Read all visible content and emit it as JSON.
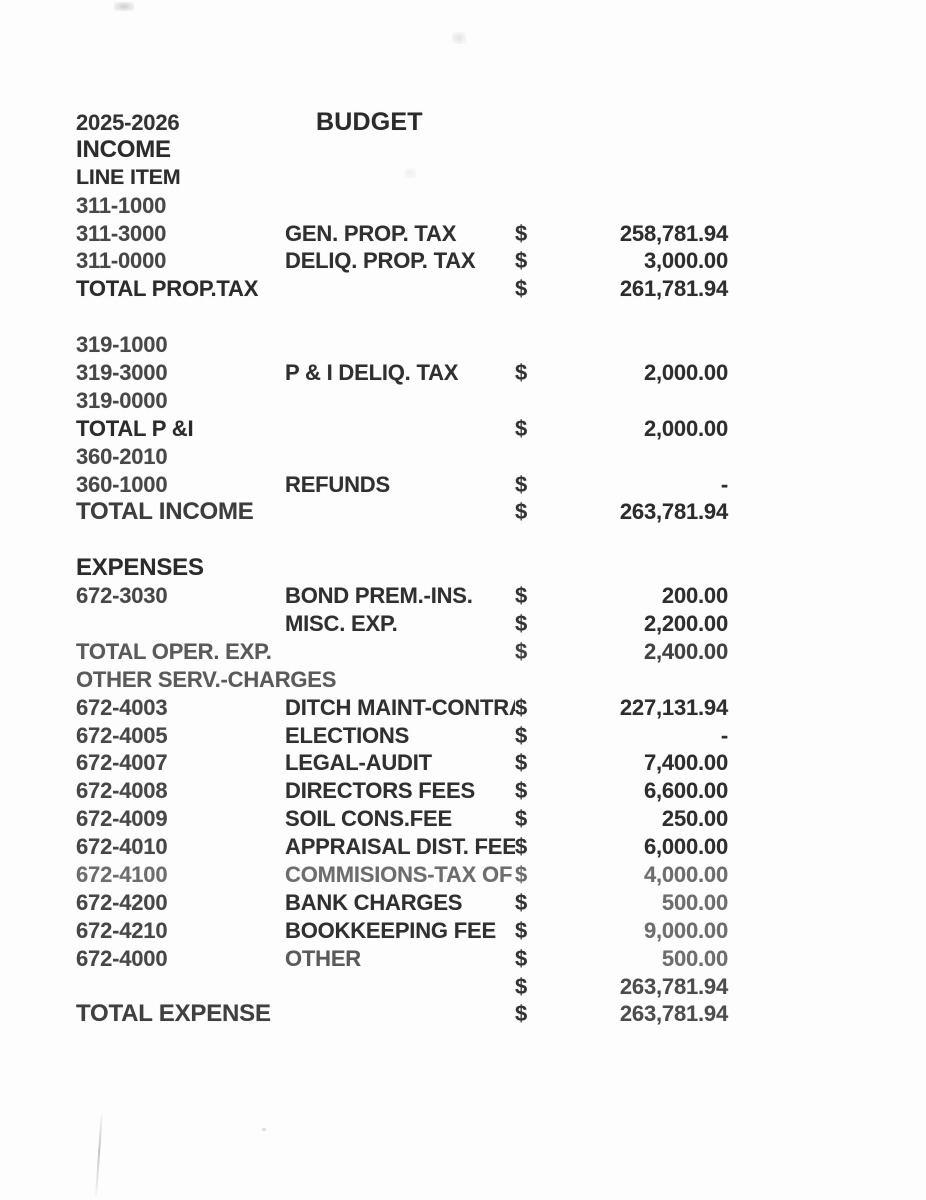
{
  "header": {
    "year": "2025-2026",
    "title": "BUDGET"
  },
  "colors": {
    "paper": "#fdfdfd",
    "ink": "#2f2f2f",
    "ink_light": "#6d6d6d"
  },
  "rows": [
    {
      "c1": "INCOME",
      "c2": "",
      "c3": "",
      "c4": "",
      "style": "section"
    },
    {
      "c1": "LINE ITEM",
      "c2": "",
      "c3": "",
      "c4": "",
      "style": "subheader"
    },
    {
      "c1": "311-1000",
      "c2": "",
      "c3": "",
      "c4": "",
      "style": "code"
    },
    {
      "c1": "311-3000",
      "c2": "GEN. PROP. TAX",
      "c3": "$",
      "c4": "258,781.94",
      "style": "item"
    },
    {
      "c1": "311-0000",
      "c2": "DELIQ. PROP. TAX",
      "c3": "$",
      "c4": "3,000.00",
      "style": "item"
    },
    {
      "c1": "TOTAL PROP.TAX",
      "c2": "",
      "c3": "$",
      "c4": "261,781.94",
      "style": "total"
    },
    {
      "c1": "",
      "c2": "",
      "c3": "",
      "c4": "",
      "style": "spacer"
    },
    {
      "c1": "319-1000",
      "c2": "",
      "c3": "",
      "c4": "",
      "style": "code"
    },
    {
      "c1": "319-3000",
      "c2": "P & I DELIQ. TAX",
      "c3": "$",
      "c4": "2,000.00",
      "style": "item"
    },
    {
      "c1": "319-0000",
      "c2": "",
      "c3": "",
      "c4": "",
      "style": "code"
    },
    {
      "c1": "TOTAL P &I",
      "c2": "",
      "c3": "$",
      "c4": "2,000.00",
      "style": "total"
    },
    {
      "c1": "360-2010",
      "c2": "",
      "c3": "",
      "c4": "",
      "style": "code"
    },
    {
      "c1": "360-1000",
      "c2": "REFUNDS",
      "c3": "$",
      "c4": "-",
      "style": "item"
    },
    {
      "c1": "TOTAL INCOME",
      "c2": "",
      "c3": "$",
      "c4": "263,781.94",
      "style": "total-big"
    },
    {
      "c1": "",
      "c2": "",
      "c3": "",
      "c4": "",
      "style": "spacer"
    },
    {
      "c1": "EXPENSES",
      "c2": "",
      "c3": "",
      "c4": "",
      "style": "section"
    },
    {
      "c1": "672-3030",
      "c2": "BOND PREM.-INS.",
      "c3": "$",
      "c4": "200.00",
      "style": "item"
    },
    {
      "c1": "",
      "c2": "MISC. EXP.",
      "c3": "$",
      "c4": "2,200.00",
      "style": "item"
    },
    {
      "c1": "TOTAL OPER. EXP.",
      "c2": "",
      "c3": "$",
      "c4": "2,400.00",
      "style": "gray"
    },
    {
      "c1": "OTHER SERV.-CHARGES",
      "c2": "",
      "c3": "",
      "c4": "",
      "style": "gray"
    },
    {
      "c1": "672-4003",
      "c2": "DITCH MAINT-CONTRA",
      "c3": "$",
      "c4": "227,131.94",
      "style": "item"
    },
    {
      "c1": "672-4005",
      "c2": "ELECTIONS",
      "c3": "$",
      "c4": "-",
      "style": "item"
    },
    {
      "c1": "672-4007",
      "c2": "LEGAL-AUDIT",
      "c3": "$",
      "c4": "7,400.00",
      "style": "item"
    },
    {
      "c1": "672-4008",
      "c2": "DIRECTORS FEES",
      "c3": "$",
      "c4": "6,600.00",
      "style": "item"
    },
    {
      "c1": "672-4009",
      "c2": "SOIL CONS.FEE",
      "c3": "$",
      "c4": "250.00",
      "style": "item"
    },
    {
      "c1": "672-4010",
      "c2": "APPRAISAL DIST. FEES",
      "c3": "$",
      "c4": "6,000.00",
      "style": "item"
    },
    {
      "c1": "672-4100",
      "c2": "COMMISIONS-TAX OF",
      "c3": "$",
      "c4": "4,000.00",
      "style": "item light"
    },
    {
      "c1": "672-4200",
      "c2": "BANK CHARGES",
      "c3": "$",
      "c4": "500.00",
      "style": "item amt-light"
    },
    {
      "c1": "672-4210",
      "c2": "BOOKKEEPING FEE",
      "c3": "$",
      "c4": "9,000.00",
      "style": "item amt-light"
    },
    {
      "c1": "672-4000",
      "c2": "OTHER",
      "c3": "$",
      "c4": "500.00",
      "style": "item desc-gray amt-light"
    },
    {
      "c1": "",
      "c2": "",
      "c3": "$",
      "c4": "263,781.94",
      "style": "item mid"
    },
    {
      "c1": "TOTAL EXPENSE",
      "c2": "",
      "c3": "$",
      "c4": "263,781.94",
      "style": "total-big mid mid-label"
    }
  ]
}
